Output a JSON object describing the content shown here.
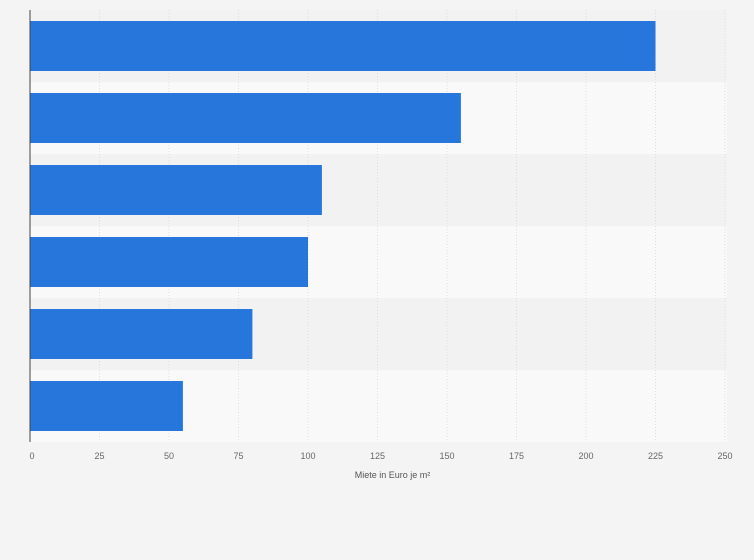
{
  "chart_data": {
    "type": "bar",
    "orientation": "horizontal",
    "categories": [
      "",
      "",
      "",
      "",
      "",
      ""
    ],
    "values": [
      225,
      155,
      105,
      100,
      80,
      55
    ],
    "xlabel": "Miete in Euro je m²",
    "ylabel": "",
    "xlim": [
      0,
      250
    ],
    "xticks": [
      0,
      25,
      50,
      75,
      100,
      125,
      150,
      175,
      200,
      225,
      250
    ],
    "grid": true,
    "legend": "none"
  },
  "colors": {
    "bar": "#2776dc",
    "band_odd": "#f2f2f2",
    "band_even": "#f9f9f9",
    "grid": "#dddddd",
    "axis": "#444444",
    "background": "#f4f4f4"
  }
}
